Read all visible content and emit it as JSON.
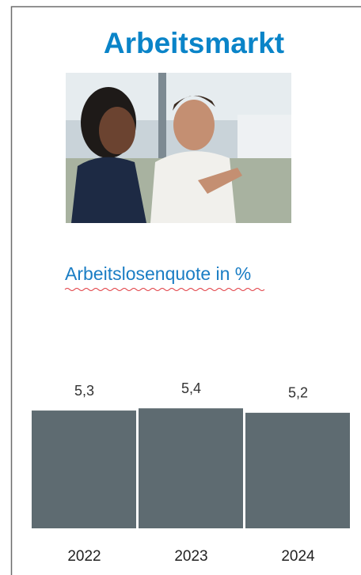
{
  "chart_data": {
    "type": "bar",
    "title": "Arbeitsmarkt",
    "subtitle": "Arbeitslosenquote in %",
    "categories": [
      "2022",
      "2023",
      "2024"
    ],
    "values": [
      5.3,
      5.4,
      5.2
    ],
    "value_labels": [
      "5,3",
      "5,4",
      "5,2"
    ],
    "color": "#5e6b71"
  }
}
